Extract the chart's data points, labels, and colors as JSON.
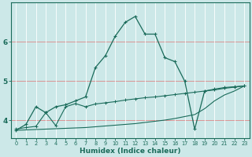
{
  "xlabel": "Humidex (Indice chaleur)",
  "bg_color": "#cce8e8",
  "line_color": "#1a6b5a",
  "red_line_color": "#dd8888",
  "xlim": [
    -0.5,
    23.5
  ],
  "ylim": [
    3.55,
    7.0
  ],
  "yticks": [
    4,
    5,
    6
  ],
  "xticks": [
    0,
    1,
    2,
    3,
    4,
    5,
    6,
    7,
    8,
    9,
    10,
    11,
    12,
    13,
    14,
    15,
    16,
    17,
    18,
    19,
    20,
    21,
    22,
    23
  ],
  "series1_x": [
    0,
    1,
    2,
    3,
    4,
    5,
    6,
    7,
    8,
    9,
    10,
    11,
    12,
    13,
    14,
    15,
    16,
    17,
    18,
    19,
    20,
    21,
    22,
    23
  ],
  "series1_y": [
    3.75,
    3.9,
    4.35,
    4.2,
    4.35,
    4.4,
    4.5,
    4.6,
    5.35,
    5.65,
    6.15,
    6.5,
    6.65,
    6.2,
    6.2,
    5.6,
    5.5,
    5.0,
    3.78,
    4.75,
    4.78,
    4.82,
    4.85,
    4.88
  ],
  "series2_x": [
    0,
    1,
    2,
    3,
    4,
    5,
    6,
    7,
    8,
    9,
    10,
    11,
    12,
    13,
    14,
    15,
    16,
    17,
    18,
    19,
    20,
    21,
    22,
    23
  ],
  "series2_y": [
    3.78,
    3.82,
    3.85,
    4.2,
    3.87,
    4.35,
    4.43,
    4.35,
    4.42,
    4.45,
    4.48,
    4.52,
    4.55,
    4.58,
    4.6,
    4.63,
    4.66,
    4.69,
    4.72,
    4.75,
    4.8,
    4.84,
    4.86,
    4.88
  ],
  "series3_x": [
    0,
    1,
    2,
    3,
    4,
    5,
    6,
    7,
    8,
    9,
    10,
    11,
    12,
    13,
    14,
    15,
    16,
    17,
    18,
    19,
    20,
    21,
    22,
    23
  ],
  "series3_y": [
    3.75,
    3.76,
    3.77,
    3.78,
    3.79,
    3.8,
    3.81,
    3.82,
    3.84,
    3.86,
    3.88,
    3.9,
    3.92,
    3.95,
    3.98,
    4.01,
    4.05,
    4.1,
    4.15,
    4.3,
    4.5,
    4.65,
    4.75,
    4.88
  ]
}
